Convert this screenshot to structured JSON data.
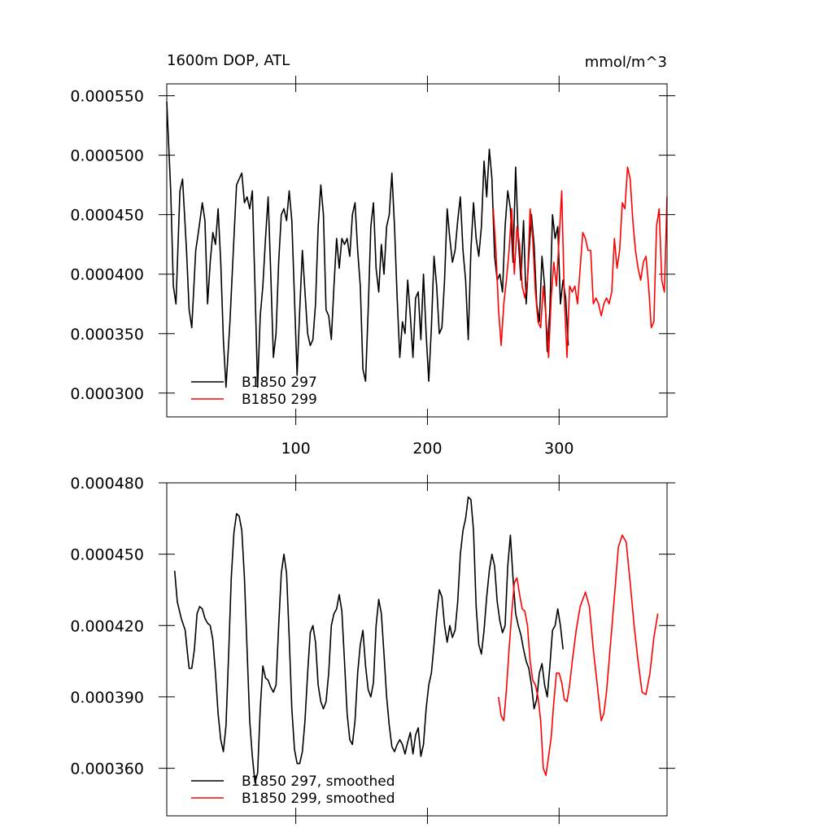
{
  "chart_data": [
    {
      "type": "line",
      "title": "1600m DOP, ATL",
      "units": "mmol/m^3",
      "xlim": [
        2,
        382
      ],
      "xticks": [
        100,
        200,
        300
      ],
      "xtick_labels": true,
      "ylim": [
        0.00028,
        0.00056
      ],
      "yticks": [
        {
          "value": 0.0003,
          "label": "0.000300"
        },
        {
          "value": 0.00035,
          "label": "0.000350"
        },
        {
          "value": 0.0004,
          "label": "0.000400"
        },
        {
          "value": 0.00045,
          "label": "0.000450"
        },
        {
          "value": 0.0005,
          "label": "0.000500"
        },
        {
          "value": 0.00055,
          "label": "0.000550"
        }
      ],
      "legend": "lower left",
      "series": [
        {
          "name": "B1850 297",
          "color": "#000000",
          "x": [
            2,
            5,
            7,
            9,
            12,
            14,
            17,
            19,
            21,
            24,
            26,
            29,
            31,
            33,
            35,
            37,
            39,
            41,
            43,
            45,
            47,
            50,
            53,
            55,
            57,
            59,
            61,
            63,
            65,
            67,
            69,
            71,
            73,
            75,
            77,
            79,
            81,
            83,
            85,
            87,
            89,
            91,
            93,
            95,
            97,
            99,
            101,
            103,
            105,
            107,
            109,
            111,
            113,
            115,
            117,
            119,
            121,
            123,
            125,
            127,
            129,
            131,
            133,
            135,
            137,
            139,
            141,
            143,
            145,
            147,
            149,
            151,
            153,
            155,
            157,
            159,
            161,
            163,
            165,
            167,
            169,
            171,
            173,
            175,
            177,
            179,
            181,
            183,
            185,
            187,
            189,
            191,
            193,
            195,
            197,
            199,
            201,
            203,
            205,
            207,
            209,
            211,
            213,
            215,
            217,
            219,
            221,
            223,
            225,
            227,
            229,
            231,
            233,
            235,
            237,
            239,
            241,
            243,
            245,
            247,
            249,
            251,
            253,
            255,
            257,
            259,
            261,
            263,
            265,
            267,
            269,
            271,
            273,
            275,
            277,
            279,
            281,
            283,
            285,
            287,
            289,
            291,
            293,
            295,
            297,
            299,
            301,
            303,
            305,
            307
          ],
          "values": [
            0.000545,
            0.00047,
            0.00039,
            0.000375,
            0.00047,
            0.00048,
            0.00042,
            0.00037,
            0.000355,
            0.00042,
            0.000435,
            0.00046,
            0.000445,
            0.000375,
            0.00041,
            0.000435,
            0.000425,
            0.000455,
            0.00041,
            0.000345,
            0.000305,
            0.00036,
            0.00043,
            0.000475,
            0.00048,
            0.000485,
            0.00046,
            0.000465,
            0.000455,
            0.00047,
            0.00039,
            0.000305,
            0.000365,
            0.00039,
            0.00043,
            0.000465,
            0.0004,
            0.00033,
            0.00035,
            0.00041,
            0.00045,
            0.000455,
            0.000445,
            0.00047,
            0.000445,
            0.00038,
            0.000315,
            0.00037,
            0.00042,
            0.000385,
            0.00035,
            0.00034,
            0.000345,
            0.000375,
            0.00044,
            0.000475,
            0.00045,
            0.00037,
            0.000365,
            0.000345,
            0.00039,
            0.00043,
            0.000405,
            0.00043,
            0.000425,
            0.00043,
            0.000415,
            0.00045,
            0.00046,
            0.00042,
            0.00039,
            0.00032,
            0.00031,
            0.00037,
            0.00044,
            0.00046,
            0.000405,
            0.000385,
            0.000425,
            0.0004,
            0.00044,
            0.00045,
            0.000485,
            0.00044,
            0.00038,
            0.00033,
            0.00036,
            0.00035,
            0.000395,
            0.000365,
            0.00033,
            0.00038,
            0.000385,
            0.000345,
            0.0004,
            0.00035,
            0.00031,
            0.000355,
            0.000415,
            0.00039,
            0.00035,
            0.000355,
            0.000395,
            0.000455,
            0.00043,
            0.00041,
            0.00042,
            0.000445,
            0.000465,
            0.00042,
            0.000395,
            0.000345,
            0.00042,
            0.00046,
            0.00043,
            0.000415,
            0.00044,
            0.000495,
            0.000465,
            0.000505,
            0.00048,
            0.000415,
            0.000395,
            0.0004,
            0.000385,
            0.00044,
            0.00047,
            0.000455,
            0.00041,
            0.00049,
            0.00043,
            0.000395,
            0.000445,
            0.000375,
            0.000415,
            0.00045,
            0.000425,
            0.000375,
            0.00036,
            0.000415,
            0.00039,
            0.000335,
            0.00037,
            0.00045,
            0.00043,
            0.00044,
            0.000375,
            0.000395,
            0.00038,
            0.00034
          ]
        },
        {
          "name": "B1850 299",
          "color": "#ff0000",
          "x": [
            250,
            252,
            254,
            256,
            258,
            260,
            262,
            264,
            266,
            268,
            270,
            272,
            274,
            276,
            278,
            280,
            282,
            284,
            286,
            288,
            290,
            292,
            294,
            296,
            298,
            300,
            302,
            304,
            306,
            308,
            310,
            312,
            314,
            316,
            318,
            320,
            322,
            324,
            326,
            328,
            330,
            332,
            334,
            336,
            338,
            340,
            342,
            344,
            346,
            348,
            350,
            352,
            354,
            356,
            358,
            360,
            362,
            364,
            366,
            368,
            370,
            372,
            374,
            376,
            378,
            380,
            382
          ],
          "values": [
            0.000455,
            0.00042,
            0.00037,
            0.00034,
            0.000375,
            0.000395,
            0.00042,
            0.000455,
            0.0004,
            0.00044,
            0.000425,
            0.00039,
            0.00038,
            0.000395,
            0.000455,
            0.00043,
            0.000385,
            0.00036,
            0.000355,
            0.00039,
            0.000365,
            0.00033,
            0.00038,
            0.00041,
            0.00039,
            0.00043,
            0.00047,
            0.00038,
            0.00033,
            0.00039,
            0.000385,
            0.00039,
            0.000375,
            0.000405,
            0.000435,
            0.00043,
            0.00042,
            0.00042,
            0.000375,
            0.00038,
            0.000375,
            0.000365,
            0.000375,
            0.00038,
            0.000375,
            0.000385,
            0.00043,
            0.000405,
            0.00042,
            0.00046,
            0.000455,
            0.00049,
            0.00048,
            0.000445,
            0.00042,
            0.000405,
            0.000395,
            0.00041,
            0.000415,
            0.00039,
            0.000355,
            0.00036,
            0.00044,
            0.000455,
            0.000395,
            0.000385,
            0.000465
          ]
        }
      ]
    },
    {
      "type": "line",
      "xlim": [
        2,
        382
      ],
      "xticks": [
        100,
        200,
        300
      ],
      "xtick_labels": false,
      "ylim": [
        0.00034,
        0.00048
      ],
      "yticks": [
        {
          "value": 0.00036,
          "label": "0.000360"
        },
        {
          "value": 0.00039,
          "label": "0.000390"
        },
        {
          "value": 0.00042,
          "label": "0.000420"
        },
        {
          "value": 0.00045,
          "label": "0.000450"
        },
        {
          "value": 0.00048,
          "label": "0.000480"
        }
      ],
      "legend": "lower left",
      "series": [
        {
          "name": "B1850 297, smoothed",
          "color": "#000000",
          "x": [
            8,
            10,
            13,
            16,
            18,
            19,
            21,
            23,
            25,
            27,
            29,
            31,
            33,
            35,
            37,
            39,
            41,
            43,
            45,
            47,
            49,
            51,
            53,
            55,
            57,
            59,
            61,
            63,
            65,
            67,
            69,
            71,
            73,
            75,
            77,
            79,
            81,
            83,
            85,
            87,
            89,
            91,
            93,
            95,
            97,
            99,
            101,
            103,
            105,
            107,
            109,
            111,
            113,
            115,
            117,
            119,
            121,
            123,
            125,
            127,
            129,
            131,
            133,
            135,
            137,
            139,
            141,
            143,
            145,
            147,
            149,
            151,
            153,
            155,
            157,
            159,
            161,
            163,
            165,
            167,
            169,
            171,
            173,
            175,
            177,
            179,
            181,
            183,
            185,
            187,
            189,
            191,
            193,
            195,
            197,
            199,
            201,
            203,
            205,
            207,
            209,
            211,
            213,
            215,
            217,
            219,
            221,
            223,
            225,
            227,
            229,
            231,
            233,
            235,
            237,
            239,
            241,
            243,
            245,
            247,
            249,
            251,
            253,
            255,
            257,
            259,
            261,
            263,
            265,
            267,
            269,
            271,
            273,
            275,
            277,
            279,
            281,
            283,
            285,
            287,
            289,
            291,
            293,
            295,
            297,
            299,
            301,
            303
          ],
          "values": [
            0.000443,
            0.00043,
            0.000423,
            0.000418,
            0.000407,
            0.000402,
            0.000402,
            0.00041,
            0.000425,
            0.000428,
            0.000427,
            0.000423,
            0.000421,
            0.00042,
            0.000414,
            0.0004,
            0.000383,
            0.000372,
            0.000367,
            0.000378,
            0.000408,
            0.00044,
            0.000459,
            0.000467,
            0.000466,
            0.00046,
            0.00044,
            0.00041,
            0.00038,
            0.000365,
            0.000354,
            0.000358,
            0.000385,
            0.000403,
            0.000398,
            0.000397,
            0.000394,
            0.000392,
            0.000395,
            0.00042,
            0.000442,
            0.00045,
            0.000442,
            0.000415,
            0.000385,
            0.000368,
            0.000362,
            0.000362,
            0.000367,
            0.00038,
            0.0004,
            0.000417,
            0.00042,
            0.000413,
            0.000395,
            0.000388,
            0.000385,
            0.000388,
            0.0004,
            0.00042,
            0.000425,
            0.000427,
            0.000433,
            0.000426,
            0.000405,
            0.000383,
            0.000372,
            0.00037,
            0.00038,
            0.0004,
            0.000412,
            0.000418,
            0.000403,
            0.000393,
            0.00039,
            0.000396,
            0.00042,
            0.000431,
            0.000425,
            0.000408,
            0.00039,
            0.000378,
            0.000369,
            0.000367,
            0.00037,
            0.000372,
            0.00037,
            0.000366,
            0.000371,
            0.000375,
            0.000366,
            0.000374,
            0.000377,
            0.000365,
            0.00037,
            0.000385,
            0.000395,
            0.0004,
            0.000412,
            0.000425,
            0.000435,
            0.000432,
            0.00042,
            0.000413,
            0.00042,
            0.000415,
            0.000418,
            0.00043,
            0.00045,
            0.00046,
            0.000465,
            0.000474,
            0.000473,
            0.00046,
            0.000428,
            0.000412,
            0.000408,
            0.000418,
            0.000432,
            0.000443,
            0.00045,
            0.000445,
            0.00043,
            0.000422,
            0.000417,
            0.00042,
            0.000445,
            0.000458,
            0.00044,
            0.000425,
            0.00042,
            0.000416,
            0.00041,
            0.000405,
            0.000402,
            0.000395,
            0.000385,
            0.000389,
            0.0004,
            0.000404,
            0.000395,
            0.00039,
            0.000403,
            0.000418,
            0.00042,
            0.000427,
            0.00042,
            0.00041
          ]
        },
        {
          "name": "B1850 299, smoothed",
          "color": "#ff0000",
          "x": [
            254,
            256,
            258,
            260,
            262,
            264,
            266,
            268,
            270,
            272,
            274,
            276,
            278,
            280,
            282,
            284,
            286,
            288,
            290,
            292,
            294,
            296,
            298,
            300,
            302,
            304,
            306,
            308,
            310,
            313,
            316,
            320,
            323,
            326,
            329,
            332,
            334,
            336,
            339,
            342,
            345,
            348,
            351,
            354,
            357,
            360,
            363,
            366,
            369,
            372,
            375
          ],
          "values": [
            0.00039,
            0.000382,
            0.00038,
            0.000393,
            0.00041,
            0.000425,
            0.000438,
            0.00044,
            0.000433,
            0.000427,
            0.000426,
            0.00042,
            0.000405,
            0.000397,
            0.000395,
            0.00039,
            0.00038,
            0.00036,
            0.000357,
            0.000365,
            0.000373,
            0.000388,
            0.0004,
            0.0004,
            0.000396,
            0.000389,
            0.000388,
            0.000395,
            0.000405,
            0.000418,
            0.000428,
            0.000434,
            0.000428,
            0.00041,
            0.000395,
            0.00038,
            0.000383,
            0.000392,
            0.000412,
            0.000432,
            0.000453,
            0.000458,
            0.000455,
            0.000438,
            0.00042,
            0.000405,
            0.000392,
            0.000391,
            0.0004,
            0.000415,
            0.000425
          ]
        }
      ]
    }
  ]
}
